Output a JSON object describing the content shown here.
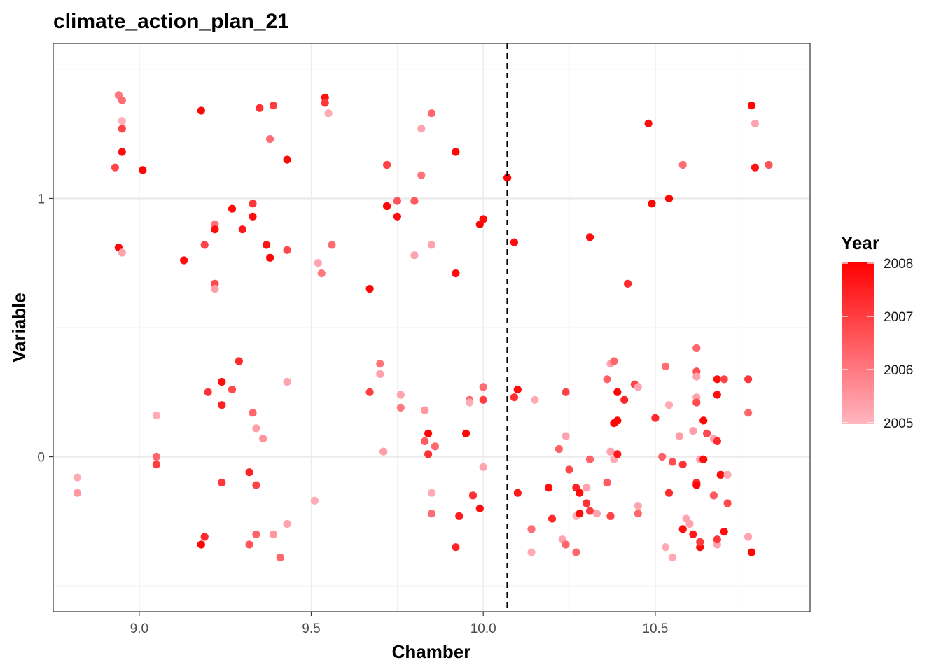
{
  "chart_data": {
    "type": "scatter",
    "title": "climate_action_plan_21",
    "xlabel": "Chamber",
    "ylabel": "Variable",
    "xlim": [
      8.75,
      10.95
    ],
    "ylim": [
      -0.6,
      1.6
    ],
    "x_ticks": [
      9.0,
      9.5,
      10.0,
      10.5
    ],
    "x_tick_labels": [
      "9.0",
      "9.5",
      "10.0",
      "10.5"
    ],
    "y_ticks": [
      0,
      1
    ],
    "y_tick_labels": [
      "0",
      "1"
    ],
    "grid": true,
    "reference_line": {
      "axis": "x",
      "value": 10.07,
      "style": "dashed",
      "color": "#000000"
    },
    "color_scale": {
      "name": "Year",
      "low_color": "#FFB6C1",
      "high_color": "#FF0000",
      "min": 2005,
      "max": 2008,
      "breaks": [
        2005,
        2006,
        2007,
        2008
      ],
      "break_labels": [
        "2005",
        "2006",
        "2007",
        "2008"
      ],
      "legend_position": "right"
    },
    "points": [
      [
        8.82,
        -0.08,
        2005.2
      ],
      [
        8.82,
        -0.14,
        2005.5
      ],
      [
        8.93,
        1.12,
        2006.8
      ],
      [
        8.94,
        1.4,
        2006.0
      ],
      [
        8.95,
        1.38,
        2006.2
      ],
      [
        8.95,
        1.3,
        2005.1
      ],
      [
        8.95,
        1.27,
        2006.9
      ],
      [
        8.95,
        1.18,
        2007.8
      ],
      [
        8.94,
        0.81,
        2007.9
      ],
      [
        8.95,
        0.79,
        2005.3
      ],
      [
        9.01,
        1.11,
        2007.9
      ],
      [
        9.05,
        0.16,
        2005.2
      ],
      [
        9.05,
        0.0,
        2006.3
      ],
      [
        9.05,
        -0.03,
        2007.0
      ],
      [
        9.13,
        0.76,
        2007.8
      ],
      [
        9.18,
        1.34,
        2007.9
      ],
      [
        9.19,
        0.82,
        2006.9
      ],
      [
        9.2,
        0.25,
        2007.2
      ],
      [
        9.22,
        0.9,
        2006.1
      ],
      [
        9.22,
        0.88,
        2007.8
      ],
      [
        9.22,
        0.67,
        2006.8
      ],
      [
        9.22,
        0.65,
        2005.4
      ],
      [
        9.24,
        0.29,
        2007.8
      ],
      [
        9.24,
        0.2,
        2007.5
      ],
      [
        9.24,
        -0.1,
        2007.1
      ],
      [
        9.19,
        -0.31,
        2007.3
      ],
      [
        9.18,
        -0.34,
        2007.9
      ],
      [
        9.27,
        0.96,
        2007.8
      ],
      [
        9.27,
        0.26,
        2006.8
      ],
      [
        9.29,
        0.37,
        2007.3
      ],
      [
        9.3,
        0.88,
        2007.6
      ],
      [
        9.32,
        -0.06,
        2007.4
      ],
      [
        9.32,
        -0.34,
        2006.6
      ],
      [
        9.33,
        0.98,
        2007.1
      ],
      [
        9.33,
        0.93,
        2007.8
      ],
      [
        9.33,
        0.17,
        2006.3
      ],
      [
        9.34,
        0.11,
        2005.4
      ],
      [
        9.34,
        -0.11,
        2006.9
      ],
      [
        9.34,
        -0.3,
        2006.4
      ],
      [
        9.35,
        1.35,
        2007.2
      ],
      [
        9.36,
        0.07,
        2005.6
      ],
      [
        9.37,
        0.82,
        2007.7
      ],
      [
        9.38,
        0.77,
        2007.9
      ],
      [
        9.38,
        1.23,
        2006.2
      ],
      [
        9.39,
        1.36,
        2007.0
      ],
      [
        9.39,
        -0.3,
        2005.5
      ],
      [
        9.41,
        -0.39,
        2006.3
      ],
      [
        9.43,
        1.15,
        2007.9
      ],
      [
        9.43,
        0.8,
        2006.8
      ],
      [
        9.43,
        0.29,
        2005.3
      ],
      [
        9.43,
        -0.26,
        2005.3
      ],
      [
        9.51,
        -0.17,
        2005.2
      ],
      [
        9.52,
        0.75,
        2005.3
      ],
      [
        9.53,
        0.71,
        2006.0
      ],
      [
        9.54,
        1.39,
        2007.8
      ],
      [
        9.54,
        1.37,
        2007.1
      ],
      [
        9.55,
        1.33,
        2005.2
      ],
      [
        9.56,
        0.82,
        2006.2
      ],
      [
        9.67,
        0.65,
        2007.9
      ],
      [
        9.67,
        0.25,
        2007.0
      ],
      [
        9.7,
        0.36,
        2006.1
      ],
      [
        9.7,
        0.32,
        2005.3
      ],
      [
        9.71,
        0.02,
        2005.4
      ],
      [
        9.72,
        1.13,
        2006.9
      ],
      [
        9.72,
        0.97,
        2007.9
      ],
      [
        9.75,
        0.99,
        2006.6
      ],
      [
        9.75,
        0.93,
        2007.8
      ],
      [
        9.76,
        0.24,
        2005.3
      ],
      [
        9.76,
        0.19,
        2006.0
      ],
      [
        9.8,
        0.99,
        2006.5
      ],
      [
        9.8,
        0.78,
        2005.3
      ],
      [
        9.82,
        1.27,
        2005.3
      ],
      [
        9.82,
        1.09,
        2006.1
      ],
      [
        9.83,
        0.18,
        2005.5
      ],
      [
        9.83,
        0.06,
        2006.5
      ],
      [
        9.84,
        0.09,
        2007.9
      ],
      [
        9.84,
        0.01,
        2007.2
      ],
      [
        9.85,
        1.33,
        2006.3
      ],
      [
        9.85,
        0.82,
        2005.3
      ],
      [
        9.85,
        -0.14,
        2005.2
      ],
      [
        9.85,
        -0.22,
        2006.2
      ],
      [
        9.86,
        0.04,
        2006.3
      ],
      [
        9.92,
        1.18,
        2007.9
      ],
      [
        9.92,
        0.71,
        2007.8
      ],
      [
        9.92,
        -0.35,
        2007.4
      ],
      [
        9.93,
        -0.23,
        2007.5
      ],
      [
        9.95,
        0.09,
        2007.9
      ],
      [
        9.96,
        0.22,
        2006.3
      ],
      [
        9.96,
        0.21,
        2005.2
      ],
      [
        9.97,
        -0.15,
        2007.2
      ],
      [
        9.99,
        0.9,
        2007.9
      ],
      [
        9.99,
        -0.2,
        2007.8
      ],
      [
        10.0,
        0.92,
        2007.8
      ],
      [
        10.0,
        0.27,
        2006.2
      ],
      [
        10.0,
        0.22,
        2007.0
      ],
      [
        10.0,
        -0.04,
        2005.3
      ],
      [
        10.07,
        1.08,
        2007.9
      ],
      [
        10.09,
        0.83,
        2007.8
      ],
      [
        10.09,
        0.23,
        2007.2
      ],
      [
        10.1,
        0.26,
        2007.8
      ],
      [
        10.1,
        -0.14,
        2007.6
      ],
      [
        10.14,
        -0.28,
        2006.2
      ],
      [
        10.14,
        -0.37,
        2005.2
      ],
      [
        10.15,
        0.22,
        2005.2
      ],
      [
        10.19,
        -0.12,
        2007.8
      ],
      [
        10.2,
        -0.24,
        2007.3
      ],
      [
        10.22,
        0.03,
        2006.4
      ],
      [
        10.23,
        -0.32,
        2005.3
      ],
      [
        10.24,
        -0.34,
        2006.3
      ],
      [
        10.24,
        0.25,
        2006.9
      ],
      [
        10.24,
        0.08,
        2005.3
      ],
      [
        10.25,
        -0.05,
        2006.8
      ],
      [
        10.27,
        -0.12,
        2007.4
      ],
      [
        10.27,
        -0.23,
        2005.1
      ],
      [
        10.27,
        -0.37,
        2006.3
      ],
      [
        10.28,
        -0.14,
        2007.8
      ],
      [
        10.28,
        -0.22,
        2007.8
      ],
      [
        10.3,
        -0.12,
        2005.3
      ],
      [
        10.3,
        -0.18,
        2007.2
      ],
      [
        10.31,
        -0.21,
        2007.0
      ],
      [
        10.31,
        0.85,
        2007.8
      ],
      [
        10.31,
        -0.01,
        2006.4
      ],
      [
        10.33,
        -0.22,
        2005.3
      ],
      [
        10.36,
        -0.1,
        2006.5
      ],
      [
        10.36,
        0.3,
        2006.4
      ],
      [
        10.37,
        0.36,
        2005.3
      ],
      [
        10.37,
        0.02,
        2005.3
      ],
      [
        10.37,
        -0.23,
        2006.9
      ],
      [
        10.38,
        0.13,
        2007.9
      ],
      [
        10.38,
        -0.01,
        2005.2
      ],
      [
        10.38,
        0.37,
        2006.3
      ],
      [
        10.39,
        0.14,
        2007.9
      ],
      [
        10.39,
        0.01,
        2007.6
      ],
      [
        10.39,
        0.25,
        2007.9
      ],
      [
        10.41,
        0.22,
        2007.4
      ],
      [
        10.42,
        0.67,
        2007.3
      ],
      [
        10.44,
        0.28,
        2006.9
      ],
      [
        10.45,
        0.27,
        2005.3
      ],
      [
        10.45,
        -0.19,
        2005.3
      ],
      [
        10.45,
        -0.22,
        2006.3
      ],
      [
        10.48,
        1.29,
        2007.8
      ],
      [
        10.49,
        0.98,
        2007.9
      ],
      [
        10.5,
        0.15,
        2007.3
      ],
      [
        10.52,
        0.0,
        2006.4
      ],
      [
        10.53,
        0.35,
        2006.2
      ],
      [
        10.53,
        -0.35,
        2005.2
      ],
      [
        10.54,
        0.2,
        2005.2
      ],
      [
        10.54,
        -0.14,
        2007.3
      ],
      [
        10.54,
        1.0,
        2007.9
      ],
      [
        10.55,
        -0.39,
        2005.2
      ],
      [
        10.55,
        -0.02,
        2006.7
      ],
      [
        10.57,
        0.08,
        2005.4
      ],
      [
        10.58,
        1.13,
        2006.2
      ],
      [
        10.58,
        -0.03,
        2007.2
      ],
      [
        10.58,
        -0.28,
        2007.8
      ],
      [
        10.59,
        -0.24,
        2005.3
      ],
      [
        10.6,
        -0.26,
        2005.3
      ],
      [
        10.61,
        -0.3,
        2007.6
      ],
      [
        10.61,
        0.1,
        2005.4
      ],
      [
        10.62,
        0.42,
        2006.3
      ],
      [
        10.62,
        0.23,
        2005.3
      ],
      [
        10.62,
        0.21,
        2006.8
      ],
      [
        10.62,
        0.33,
        2006.7
      ],
      [
        10.62,
        0.31,
        2005.3
      ],
      [
        10.62,
        -0.1,
        2007.3
      ],
      [
        10.62,
        -0.11,
        2007.9
      ],
      [
        10.63,
        -0.35,
        2007.8
      ],
      [
        10.63,
        -0.33,
        2007.0
      ],
      [
        10.63,
        -0.01,
        2005.3
      ],
      [
        10.64,
        0.14,
        2007.9
      ],
      [
        10.64,
        -0.01,
        2007.8
      ],
      [
        10.65,
        0.09,
        2006.8
      ],
      [
        10.67,
        0.07,
        2005.3
      ],
      [
        10.67,
        -0.15,
        2006.5
      ],
      [
        10.68,
        0.06,
        2007.6
      ],
      [
        10.68,
        0.06,
        2007.3
      ],
      [
        10.68,
        -0.34,
        2005.3
      ],
      [
        10.68,
        -0.32,
        2007.1
      ],
      [
        10.68,
        0.24,
        2007.8
      ],
      [
        10.68,
        0.3,
        2007.8
      ],
      [
        10.69,
        -0.07,
        2007.8
      ],
      [
        10.7,
        -0.29,
        2007.8
      ],
      [
        10.7,
        0.3,
        2006.9
      ],
      [
        10.71,
        -0.18,
        2006.8
      ],
      [
        10.71,
        -0.07,
        2005.2
      ],
      [
        10.77,
        0.3,
        2007.1
      ],
      [
        10.77,
        0.17,
        2006.3
      ],
      [
        10.77,
        -0.31,
        2005.3
      ],
      [
        10.78,
        -0.37,
        2007.9
      ],
      [
        10.78,
        1.36,
        2007.9
      ],
      [
        10.79,
        1.29,
        2005.3
      ],
      [
        10.79,
        1.12,
        2007.7
      ],
      [
        10.83,
        1.13,
        2006.6
      ]
    ]
  }
}
